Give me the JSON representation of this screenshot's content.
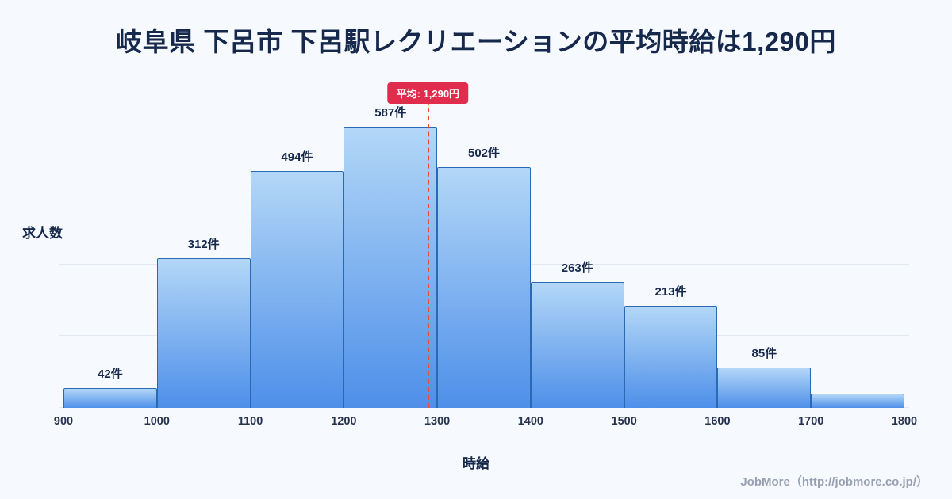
{
  "title": "岐阜県 下呂市 下呂駅レクリエーションの平均時給は1,290円",
  "chart_data": {
    "type": "bar",
    "subtype": "histogram",
    "title": "岐阜県 下呂市 下呂駅レクリエーションの平均時給は1,290円",
    "xlabel": "時給",
    "ylabel": "求人数",
    "x_range": [
      900,
      1800
    ],
    "y_range": [
      0,
      620
    ],
    "grid": "horizontal",
    "gridline_values": [
      0,
      150,
      300,
      450,
      600
    ],
    "x_ticks": [
      "900",
      "1000",
      "1100",
      "1200",
      "1300",
      "1400",
      "1500",
      "1600",
      "1700",
      "1800"
    ],
    "bins": [
      {
        "x0": 900,
        "x1": 1000,
        "value": 42,
        "label": "42件"
      },
      {
        "x0": 1000,
        "x1": 1100,
        "value": 312,
        "label": "312件"
      },
      {
        "x0": 1100,
        "x1": 1200,
        "value": 494,
        "label": "494件"
      },
      {
        "x0": 1200,
        "x1": 1300,
        "value": 587,
        "label": "587件"
      },
      {
        "x0": 1300,
        "x1": 1400,
        "value": 502,
        "label": "502件"
      },
      {
        "x0": 1400,
        "x1": 1500,
        "value": 263,
        "label": "263件"
      },
      {
        "x0": 1500,
        "x1": 1600,
        "value": 213,
        "label": "213件"
      },
      {
        "x0": 1600,
        "x1": 1700,
        "value": 85,
        "label": "85件"
      },
      {
        "x0": 1700,
        "x1": 1800,
        "value": 30,
        "label": ""
      }
    ],
    "average": {
      "value": 1290,
      "label": "平均: 1,290円"
    }
  },
  "footer": {
    "credit": "JobMore（http://jobmore.co.jp/）"
  },
  "colors": {
    "background": "#f6f9fd",
    "title_text": "#16294d",
    "grid": "#e2e8f1",
    "bar_top": "#b3d7f7",
    "bar_bottom": "#4e8fe9",
    "bar_border": "#2a6ab3",
    "average_line": "#f0483e",
    "average_badge": "#e02d4e"
  }
}
